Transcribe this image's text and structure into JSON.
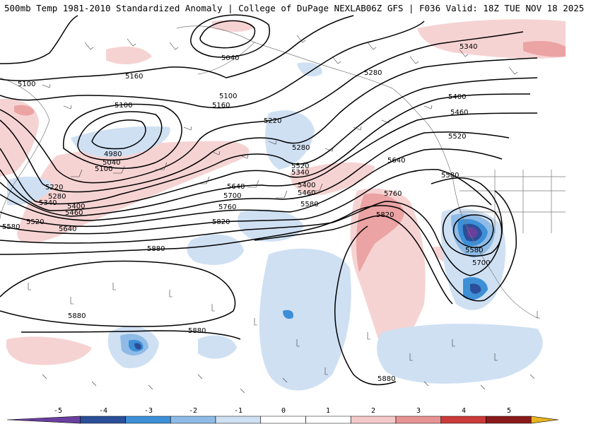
{
  "header": {
    "left_title": "500mb Temp 1981-2010 Standardized Anomaly | College of DuPage NEXLAB",
    "right_title": "06Z GFS | F036 Valid: 18Z TUE NOV 18 2025"
  },
  "colorbar": {
    "labels": [
      "-5",
      "-4",
      "-3",
      "-2",
      "-1",
      "0",
      "1",
      "2",
      "3",
      "4",
      "5"
    ],
    "colors": [
      "#6a3fa0",
      "#2b4f99",
      "#3d8fd6",
      "#8fbbe6",
      "#cfe0f3",
      "#ffffff",
      "#ffffff",
      "#f4c9c9",
      "#e89393",
      "#cc3a3a",
      "#8b1a1a",
      "#e8b520"
    ]
  },
  "contour_labels": [
    "5040",
    "5100",
    "5160",
    "5100",
    "5100",
    "5160",
    "4980",
    "5040",
    "5100",
    "5220",
    "5280",
    "5340",
    "5460",
    "5400",
    "5520",
    "5580",
    "5640",
    "5280",
    "5220",
    "5280",
    "5340",
    "5400",
    "5460",
    "5520",
    "5580",
    "5640",
    "5700",
    "5760",
    "5820",
    "5880",
    "5880",
    "5880",
    "5340",
    "5400",
    "5460",
    "5520",
    "5580",
    "5640",
    "5760",
    "5820",
    "5580",
    "5700",
    "5880"
  ]
}
